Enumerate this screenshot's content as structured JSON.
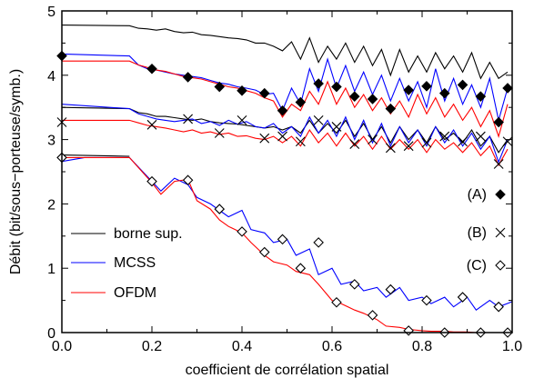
{
  "chart_data": {
    "type": "line",
    "title": "",
    "xlabel": "coefficient de corrélation spatial",
    "ylabel": "Débit (bit/sous−porteuse/symb.)",
    "xlim": [
      0,
      1
    ],
    "ylim": [
      0,
      5
    ],
    "x_ticks": [
      "0.0",
      "0.2",
      "0.4",
      "0.6",
      "0.8",
      "1.0"
    ],
    "y_ticks": [
      "0",
      "1",
      "2",
      "3",
      "4",
      "5"
    ],
    "grid": false,
    "legend": [
      {
        "name": "borne sup.",
        "color": "#000000"
      },
      {
        "name": "MCSS",
        "color": "#0000ff"
      },
      {
        "name": "OFDM",
        "color": "#ff0000"
      }
    ],
    "marker_legend": [
      {
        "label": "(A)",
        "marker": "filled-diamond"
      },
      {
        "label": "(B)",
        "marker": "cross"
      },
      {
        "label": "(C)",
        "marker": "open-diamond"
      }
    ],
    "series": [
      {
        "group": "A",
        "kind": "borne sup.",
        "color": "#000000",
        "x": [
          0.0,
          0.15,
          0.17,
          0.19,
          0.21,
          0.23,
          0.25,
          0.27,
          0.29,
          0.31,
          0.33,
          0.35,
          0.37,
          0.39,
          0.41,
          0.43,
          0.45,
          0.47,
          0.49,
          0.51,
          0.53,
          0.55,
          0.57,
          0.59,
          0.61,
          0.63,
          0.65,
          0.67,
          0.69,
          0.71,
          0.73,
          0.75,
          0.77,
          0.79,
          0.81,
          0.83,
          0.85,
          0.87,
          0.89,
          0.91,
          0.93,
          0.95,
          0.97,
          0.99
        ],
        "y": [
          4.78,
          4.77,
          4.73,
          4.72,
          4.7,
          4.72,
          4.68,
          4.66,
          4.67,
          4.63,
          4.62,
          4.6,
          4.58,
          4.57,
          4.55,
          4.5,
          4.5,
          4.45,
          4.38,
          4.52,
          4.25,
          4.58,
          4.2,
          4.45,
          4.25,
          4.5,
          4.2,
          4.45,
          4.15,
          4.4,
          4.0,
          4.4,
          4.05,
          4.3,
          4.05,
          4.35,
          4.1,
          4.3,
          4.05,
          4.35,
          3.95,
          4.2,
          3.95,
          4.05
        ]
      },
      {
        "group": "A",
        "kind": "MCSS",
        "color": "#0000ff",
        "x": [
          0.0,
          0.15,
          0.17,
          0.19,
          0.21,
          0.23,
          0.25,
          0.27,
          0.29,
          0.31,
          0.33,
          0.35,
          0.37,
          0.39,
          0.41,
          0.43,
          0.45,
          0.47,
          0.49,
          0.51,
          0.53,
          0.55,
          0.57,
          0.59,
          0.61,
          0.63,
          0.65,
          0.67,
          0.69,
          0.71,
          0.73,
          0.75,
          0.77,
          0.79,
          0.81,
          0.83,
          0.85,
          0.87,
          0.89,
          0.91,
          0.93,
          0.95,
          0.97,
          0.99
        ],
        "y": [
          4.33,
          4.3,
          4.16,
          4.1,
          4.08,
          4.05,
          4.02,
          4.0,
          3.98,
          3.96,
          3.92,
          3.88,
          3.86,
          3.82,
          3.8,
          3.77,
          3.7,
          3.72,
          3.45,
          3.8,
          3.55,
          4.1,
          3.75,
          4.25,
          3.8,
          4.15,
          3.75,
          4.05,
          3.7,
          4.0,
          3.6,
          3.95,
          3.6,
          3.9,
          3.5,
          4.1,
          3.6,
          3.95,
          3.55,
          3.85,
          3.5,
          3.95,
          3.3,
          3.8
        ]
      },
      {
        "group": "A",
        "kind": "OFDM",
        "color": "#ff0000",
        "x": [
          0.0,
          0.15,
          0.17,
          0.19,
          0.21,
          0.23,
          0.25,
          0.27,
          0.29,
          0.31,
          0.33,
          0.35,
          0.37,
          0.39,
          0.41,
          0.43,
          0.45,
          0.47,
          0.49,
          0.51,
          0.53,
          0.55,
          0.57,
          0.59,
          0.61,
          0.63,
          0.65,
          0.67,
          0.69,
          0.71,
          0.73,
          0.75,
          0.77,
          0.79,
          0.81,
          0.83,
          0.85,
          0.87,
          0.89,
          0.91,
          0.93,
          0.95,
          0.97,
          0.99
        ],
        "y": [
          4.22,
          4.22,
          4.16,
          4.12,
          4.08,
          4.06,
          4.02,
          3.98,
          3.96,
          3.94,
          3.9,
          3.86,
          3.82,
          3.8,
          3.76,
          3.72,
          3.65,
          3.6,
          3.35,
          3.55,
          3.45,
          3.75,
          3.55,
          3.9,
          3.55,
          3.8,
          3.5,
          3.7,
          3.45,
          3.65,
          3.4,
          3.6,
          3.35,
          3.7,
          3.4,
          3.65,
          3.35,
          3.55,
          3.3,
          3.5,
          3.2,
          3.45,
          3.05,
          3.55
        ]
      },
      {
        "group": "A",
        "kind": "markers",
        "marker": "filled-diamond",
        "x": [
          0.0,
          0.2,
          0.28,
          0.35,
          0.4,
          0.45,
          0.49,
          0.53,
          0.57,
          0.61,
          0.65,
          0.69,
          0.73,
          0.77,
          0.81,
          0.85,
          0.89,
          0.93,
          0.97,
          0.99
        ],
        "y": [
          4.3,
          4.1,
          3.97,
          3.82,
          3.76,
          3.72,
          3.45,
          3.58,
          3.87,
          3.82,
          3.67,
          3.63,
          3.48,
          3.77,
          3.83,
          3.72,
          3.85,
          3.67,
          3.27,
          3.8
        ]
      },
      {
        "group": "B",
        "kind": "borne sup.",
        "color": "#000000",
        "x": [
          0.0,
          0.15,
          0.17,
          0.19,
          0.21,
          0.23,
          0.25,
          0.27,
          0.29,
          0.31,
          0.33,
          0.35,
          0.37,
          0.39,
          0.41,
          0.43,
          0.45,
          0.47,
          0.49,
          0.51,
          0.53,
          0.55,
          0.57,
          0.59,
          0.61,
          0.63,
          0.65,
          0.67,
          0.69,
          0.71,
          0.73,
          0.75,
          0.77,
          0.79,
          0.81,
          0.83,
          0.85,
          0.87,
          0.89,
          0.91,
          0.93,
          0.95,
          0.97,
          0.99
        ],
        "y": [
          3.5,
          3.48,
          3.42,
          3.4,
          3.36,
          3.36,
          3.34,
          3.32,
          3.3,
          3.32,
          3.28,
          3.26,
          3.25,
          3.24,
          3.22,
          3.2,
          3.18,
          3.2,
          3.15,
          3.2,
          3.1,
          3.3,
          3.1,
          3.25,
          3.1,
          3.3,
          3.05,
          3.25,
          3.0,
          3.2,
          2.95,
          3.2,
          3.0,
          3.15,
          2.95,
          3.2,
          3.0,
          3.1,
          2.95,
          3.15,
          2.9,
          3.05,
          2.8,
          3.0
        ]
      },
      {
        "group": "B",
        "kind": "MCSS",
        "color": "#0000ff",
        "x": [
          0.0,
          0.15,
          0.17,
          0.19,
          0.21,
          0.23,
          0.25,
          0.27,
          0.29,
          0.31,
          0.33,
          0.35,
          0.37,
          0.39,
          0.41,
          0.43,
          0.45,
          0.47,
          0.49,
          0.51,
          0.53,
          0.55,
          0.57,
          0.59,
          0.61,
          0.63,
          0.65,
          0.67,
          0.69,
          0.71,
          0.73,
          0.75,
          0.77,
          0.79,
          0.81,
          0.83,
          0.85,
          0.87,
          0.89,
          0.91,
          0.93,
          0.95,
          0.97,
          0.99
        ],
        "y": [
          3.55,
          3.48,
          3.4,
          3.36,
          3.32,
          3.3,
          3.28,
          3.3,
          3.32,
          3.25,
          3.28,
          3.22,
          3.3,
          3.24,
          3.28,
          3.2,
          3.18,
          3.25,
          3.1,
          3.2,
          3.05,
          3.35,
          3.1,
          3.3,
          3.05,
          3.35,
          3.0,
          3.3,
          2.95,
          3.25,
          2.9,
          3.2,
          2.95,
          3.15,
          2.9,
          3.2,
          2.95,
          3.15,
          2.9,
          3.1,
          2.85,
          3.05,
          2.65,
          3.0
        ]
      },
      {
        "group": "B",
        "kind": "OFDM",
        "color": "#ff0000",
        "x": [
          0.0,
          0.15,
          0.17,
          0.19,
          0.21,
          0.23,
          0.25,
          0.27,
          0.29,
          0.31,
          0.33,
          0.35,
          0.37,
          0.39,
          0.41,
          0.43,
          0.45,
          0.47,
          0.49,
          0.51,
          0.53,
          0.55,
          0.57,
          0.59,
          0.61,
          0.63,
          0.65,
          0.67,
          0.69,
          0.71,
          0.73,
          0.75,
          0.77,
          0.79,
          0.81,
          0.83,
          0.85,
          0.87,
          0.89,
          0.91,
          0.93,
          0.95,
          0.97,
          0.99
        ],
        "y": [
          3.3,
          3.3,
          3.26,
          3.22,
          3.2,
          3.18,
          3.15,
          3.12,
          3.15,
          3.1,
          3.12,
          3.08,
          3.1,
          3.05,
          3.06,
          3.02,
          3.0,
          3.05,
          2.95,
          3.05,
          2.9,
          3.15,
          2.95,
          3.1,
          2.9,
          3.1,
          2.9,
          3.05,
          2.85,
          3.05,
          2.85,
          3.0,
          2.85,
          3.0,
          2.8,
          3.0,
          2.85,
          2.95,
          2.8,
          2.95,
          2.75,
          2.9,
          2.6,
          2.85
        ]
      },
      {
        "group": "B",
        "kind": "markers",
        "marker": "cross",
        "x": [
          0.0,
          0.2,
          0.28,
          0.35,
          0.4,
          0.45,
          0.49,
          0.53,
          0.57,
          0.61,
          0.65,
          0.69,
          0.73,
          0.77,
          0.81,
          0.85,
          0.89,
          0.93,
          0.97,
          0.99
        ],
        "y": [
          3.27,
          3.23,
          3.32,
          3.1,
          3.3,
          3.02,
          3.05,
          2.97,
          3.3,
          3.2,
          2.93,
          3.0,
          2.87,
          2.9,
          2.95,
          3.05,
          2.97,
          3.05,
          2.62,
          2.97
        ]
      },
      {
        "group": "C",
        "kind": "borne sup.",
        "color": "#000000",
        "x": [
          0.0,
          0.15
        ],
        "y": [
          2.76,
          2.74
        ]
      },
      {
        "group": "C",
        "kind": "MCSS",
        "color": "#0000ff",
        "x": [
          0.0,
          0.05,
          0.1,
          0.15,
          0.2,
          0.22,
          0.25,
          0.28,
          0.3,
          0.33,
          0.35,
          0.37,
          0.4,
          0.42,
          0.45,
          0.47,
          0.5,
          0.52,
          0.55,
          0.57,
          0.6,
          0.62,
          0.65,
          0.67,
          0.7,
          0.72,
          0.75,
          0.77,
          0.8,
          0.82,
          0.85,
          0.87,
          0.9,
          0.92,
          0.95,
          0.97,
          1.0
        ],
        "y": [
          2.66,
          2.72,
          2.72,
          2.72,
          2.35,
          2.2,
          2.4,
          2.3,
          2.1,
          2.0,
          1.9,
          1.8,
          1.9,
          1.6,
          1.55,
          1.4,
          1.45,
          1.2,
          1.3,
          0.9,
          1.0,
          0.75,
          0.8,
          0.65,
          0.7,
          0.55,
          0.7,
          0.5,
          0.55,
          0.45,
          0.55,
          0.4,
          0.55,
          0.35,
          0.5,
          0.4,
          0.48
        ]
      },
      {
        "group": "C",
        "kind": "OFDM",
        "color": "#ff0000",
        "x": [
          0.0,
          0.05,
          0.1,
          0.15,
          0.2,
          0.22,
          0.25,
          0.28,
          0.3,
          0.33,
          0.35,
          0.37,
          0.4,
          0.42,
          0.45,
          0.47,
          0.5,
          0.52,
          0.55,
          0.57,
          0.6,
          0.62,
          0.65,
          0.67,
          0.7,
          0.72,
          0.75,
          0.77,
          0.8,
          0.82,
          0.85,
          0.87,
          0.9,
          0.92,
          0.95,
          0.97,
          1.0
        ],
        "y": [
          2.72,
          2.72,
          2.72,
          2.72,
          2.33,
          2.15,
          2.35,
          2.38,
          2.05,
          1.92,
          1.75,
          1.65,
          1.55,
          1.4,
          1.2,
          1.1,
          1.05,
          0.95,
          0.9,
          0.75,
          0.5,
          0.45,
          0.35,
          0.3,
          0.2,
          0.1,
          0.08,
          0.05,
          0.03,
          0.02,
          0.02,
          0.01,
          0.01,
          0.0,
          0.0,
          0.0,
          0.0
        ]
      },
      {
        "group": "C",
        "kind": "markers",
        "marker": "open-diamond",
        "x": [
          0.0,
          0.2,
          0.28,
          0.35,
          0.4,
          0.45,
          0.49,
          0.53,
          0.57,
          0.61,
          0.65,
          0.69,
          0.73,
          0.77,
          0.81,
          0.85,
          0.89,
          0.93,
          0.97,
          0.99
        ],
        "y": [
          2.72,
          2.35,
          2.37,
          1.92,
          1.57,
          1.25,
          1.45,
          1.0,
          1.4,
          0.47,
          0.75,
          0.27,
          0.67,
          0.03,
          0.5,
          0.0,
          0.55,
          0.0,
          0.4,
          0.0
        ]
      }
    ]
  }
}
